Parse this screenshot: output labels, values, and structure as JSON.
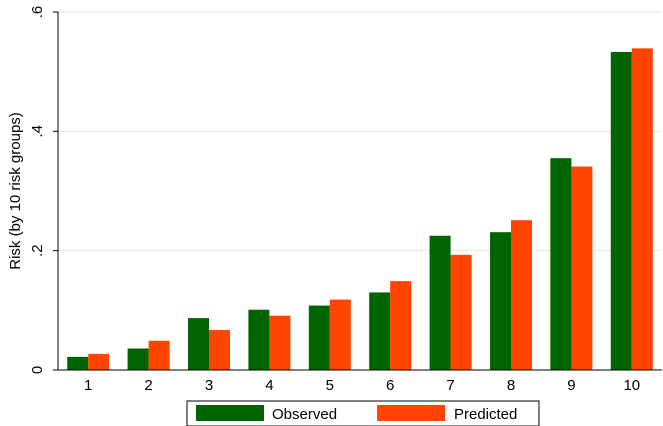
{
  "chart_data": {
    "type": "bar",
    "ylabel": "Risk (by 10 risk groups)",
    "xlabel": "",
    "categories": [
      "1",
      "2",
      "3",
      "4",
      "5",
      "6",
      "7",
      "8",
      "9",
      "10"
    ],
    "series": [
      {
        "name": "Observed",
        "color": "#006400",
        "values": [
          0.022,
          0.036,
          0.087,
          0.101,
          0.108,
          0.13,
          0.225,
          0.231,
          0.355,
          0.533
        ]
      },
      {
        "name": "Predicted",
        "color": "#ff4500",
        "values": [
          0.027,
          0.049,
          0.067,
          0.091,
          0.118,
          0.149,
          0.193,
          0.251,
          0.341,
          0.539
        ]
      }
    ],
    "ylim": [
      0,
      0.6
    ],
    "yticks": [
      {
        "value": 0,
        "label": "0"
      },
      {
        "value": 0.2,
        "label": ".2"
      },
      {
        "value": 0.4,
        "label": ".4"
      },
      {
        "value": 0.6,
        "label": ".6"
      }
    ],
    "grid": true,
    "legend_position": "bottom"
  }
}
